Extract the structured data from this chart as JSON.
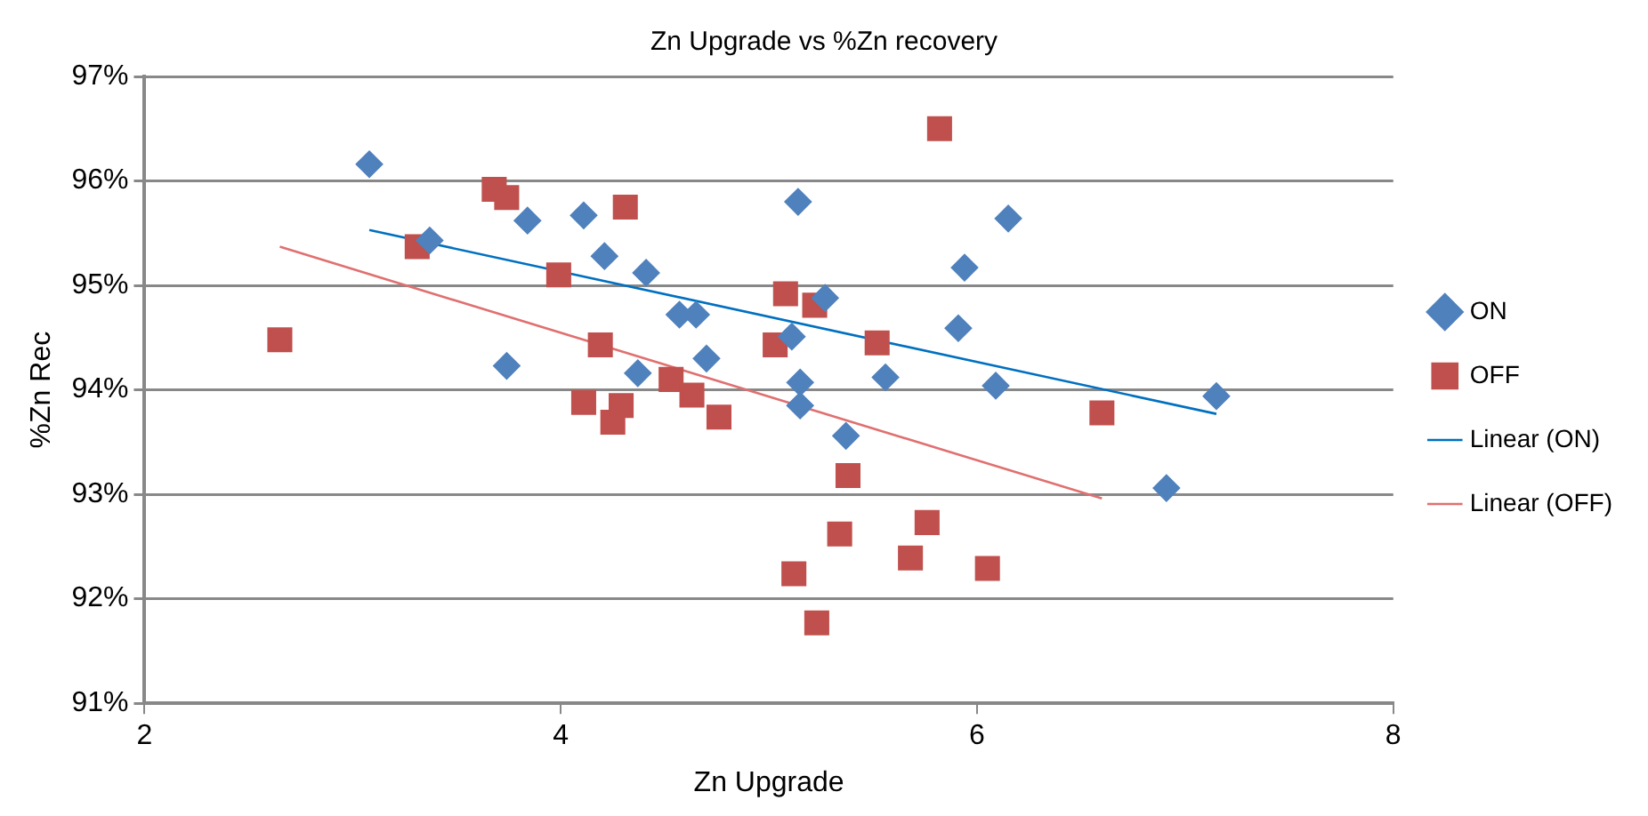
{
  "chart_data": {
    "type": "scatter",
    "title": "Zn Upgrade vs %Zn recovery",
    "xlabel": "Zn Upgrade",
    "ylabel": "%Zn Rec",
    "xlim": [
      2,
      8
    ],
    "xticks": [
      2,
      4,
      6,
      8
    ],
    "ylim": [
      91,
      97
    ],
    "yticks": [
      {
        "value": 91,
        "label": "91%"
      },
      {
        "value": 92,
        "label": "92%"
      },
      {
        "value": 93,
        "label": "93%"
      },
      {
        "value": 94,
        "label": "94%"
      },
      {
        "value": 95,
        "label": "95%"
      },
      {
        "value": 96,
        "label": "96%"
      },
      {
        "value": 97,
        "label": "97%"
      }
    ],
    "grid": "y",
    "legend": "right",
    "series": [
      {
        "name": "ON",
        "color": "#4f81bd",
        "marker": "diamond",
        "x": [
          3.08,
          3.37,
          3.84,
          4.11,
          4.21,
          4.41,
          4.57,
          4.65,
          4.7,
          3.74,
          4.37,
          5.14,
          5.27,
          5.11,
          5.15,
          5.15,
          5.56,
          5.37,
          5.94,
          6.15,
          5.91,
          6.09,
          7.15,
          6.91
        ],
        "values": [
          96.16,
          95.43,
          95.62,
          95.67,
          95.28,
          95.12,
          94.72,
          94.72,
          94.3,
          94.23,
          94.16,
          95.8,
          94.88,
          94.51,
          94.07,
          93.85,
          94.12,
          93.56,
          95.17,
          95.64,
          94.59,
          94.04,
          93.94,
          93.06
        ]
      },
      {
        "name": "OFF",
        "color": "#c0504d",
        "marker": "square",
        "x": [
          2.65,
          3.31,
          3.68,
          3.74,
          4.31,
          3.99,
          4.19,
          4.11,
          4.25,
          4.29,
          4.53,
          4.63,
          4.76,
          5.08,
          5.22,
          5.03,
          5.52,
          5.82,
          6.6,
          5.38,
          5.34,
          5.12,
          5.23,
          5.76,
          5.68,
          6.05
        ],
        "values": [
          94.48,
          95.37,
          95.92,
          95.84,
          95.75,
          95.1,
          94.43,
          93.88,
          93.69,
          93.85,
          94.1,
          93.95,
          93.74,
          94.92,
          94.81,
          94.43,
          94.45,
          96.5,
          93.78,
          93.18,
          92.62,
          92.24,
          91.77,
          92.73,
          92.39,
          92.29
        ]
      },
      {
        "name": "Linear (ON)",
        "type": "line",
        "color": "#0070c0",
        "marker": "none",
        "x": [
          3.08,
          7.15
        ],
        "values": [
          95.53,
          93.77
        ]
      },
      {
        "name": "Linear (OFF)",
        "type": "line",
        "color": "#e07070",
        "marker": "none",
        "x": [
          2.65,
          6.6
        ],
        "values": [
          95.37,
          92.96
        ]
      }
    ]
  }
}
